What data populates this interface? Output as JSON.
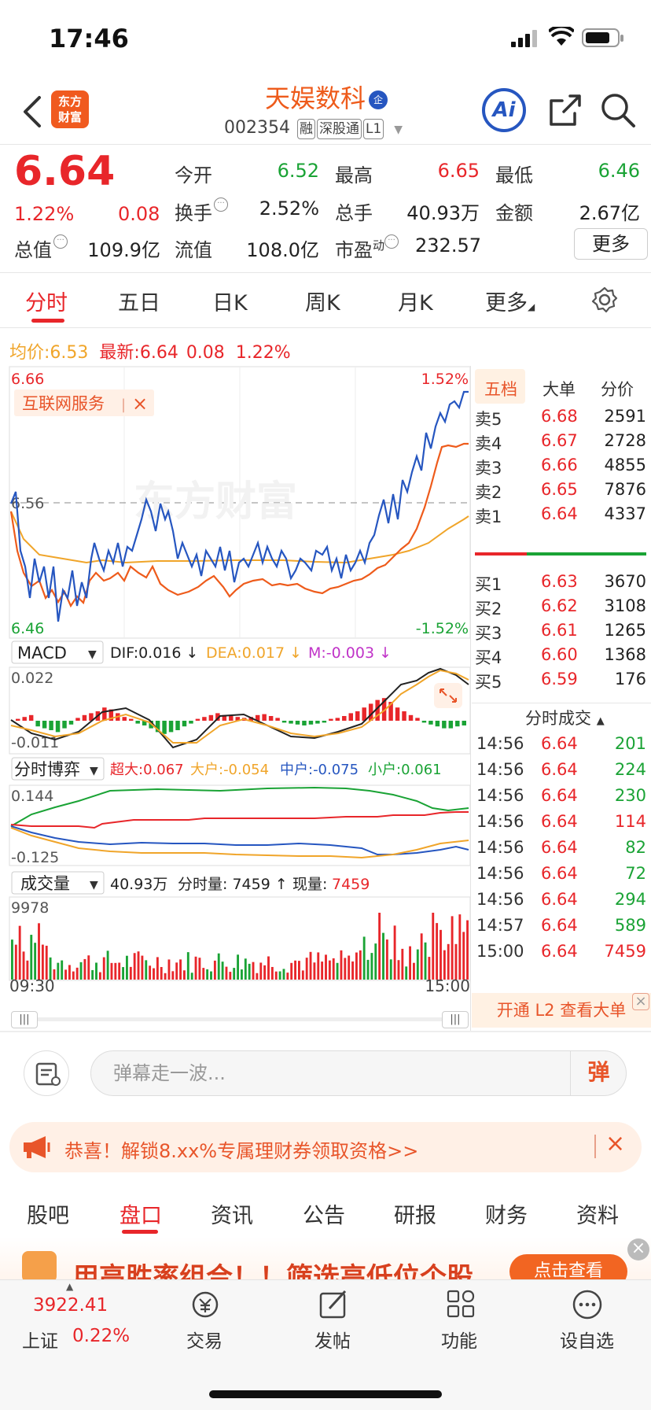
{
  "status_bar": {
    "time": "17:46"
  },
  "header": {
    "logo_text": "东方财富",
    "stock_name": "天娱数科",
    "stock_badge": "企",
    "stock_code": "002354",
    "tags": [
      "融",
      "深股通",
      "L1"
    ]
  },
  "quote": {
    "price": "6.64",
    "change_pct": "1.22%",
    "change": "0.08",
    "fields": [
      {
        "label": "今开",
        "value": "6.52",
        "color": "green"
      },
      {
        "label": "最高",
        "value": "6.65",
        "color": "red"
      },
      {
        "label": "最低",
        "value": "6.46",
        "color": "green"
      },
      {
        "label": "换手",
        "value": "2.52%",
        "color": "black"
      },
      {
        "label": "总手",
        "value": "40.93万",
        "color": "black"
      },
      {
        "label": "金额",
        "value": "2.67亿",
        "color": "black"
      },
      {
        "label": "总值",
        "value": "109.9亿",
        "color": "black"
      },
      {
        "label": "流值",
        "value": "108.0亿",
        "color": "black"
      },
      {
        "label": "市盈",
        "value": "232.57",
        "color": "black"
      }
    ],
    "pe_superscript": "动",
    "more_label": "更多"
  },
  "chart_tabs": [
    "分时",
    "五日",
    "日K",
    "周K",
    "月K",
    "更多"
  ],
  "legend": {
    "avg_label": "均价:",
    "avg_value": "6.53",
    "latest_label": "最新:",
    "latest_value": "6.64",
    "change": "0.08",
    "change_pct": "1.22%"
  },
  "intraday": {
    "price_max": "6.66",
    "price_mid": "6.56",
    "price_min": "6.46",
    "pct_max": "1.52%",
    "pct_min": "-1.52%",
    "sector_tag": "互联网服务",
    "watermark": "东方财富",
    "time_start": "09:30",
    "time_end": "15:00"
  },
  "macd": {
    "name": "MACD",
    "dif": "DIF:0.016 ↓",
    "dea": "DEA:0.017 ↓",
    "m": "M:-0.003 ↓",
    "top": "0.022",
    "bottom": "-0.011"
  },
  "bogame": {
    "name": "分时博弈",
    "chaoda": "超大:0.067",
    "dahu": "大户:-0.054",
    "zhonghu": "中户:-0.075",
    "xiaohu": "小户:0.061",
    "top": "0.144",
    "bottom": "-0.125"
  },
  "volume": {
    "name": "成交量",
    "total": "40.93万",
    "fenshi_label": "分时量: 7459 ↑",
    "current_label": "现量:",
    "current_value": "7459",
    "max": "9978"
  },
  "orderbook": {
    "tabs": [
      "五档",
      "大单",
      "分价"
    ],
    "asks": [
      {
        "label": "卖5",
        "price": "6.68",
        "vol": "2591"
      },
      {
        "label": "卖4",
        "price": "6.67",
        "vol": "2728"
      },
      {
        "label": "卖3",
        "price": "6.66",
        "vol": "4855"
      },
      {
        "label": "卖2",
        "price": "6.65",
        "vol": "7876"
      },
      {
        "label": "卖1",
        "price": "6.64",
        "vol": "4337"
      }
    ],
    "bids": [
      {
        "label": "买1",
        "price": "6.63",
        "vol": "3670"
      },
      {
        "label": "买2",
        "price": "6.62",
        "vol": "3108"
      },
      {
        "label": "买3",
        "price": "6.61",
        "vol": "1265"
      },
      {
        "label": "买4",
        "price": "6.60",
        "vol": "1368"
      },
      {
        "label": "买5",
        "price": "6.59",
        "vol": "176"
      }
    ],
    "trades_title": "分时成交",
    "trades": [
      {
        "time": "14:56",
        "price": "6.64",
        "vol": "201",
        "color": "green"
      },
      {
        "time": "14:56",
        "price": "6.64",
        "vol": "224",
        "color": "green"
      },
      {
        "time": "14:56",
        "price": "6.64",
        "vol": "230",
        "color": "green"
      },
      {
        "time": "14:56",
        "price": "6.64",
        "vol": "114",
        "color": "red"
      },
      {
        "time": "14:56",
        "price": "6.64",
        "vol": "82",
        "color": "green"
      },
      {
        "time": "14:56",
        "price": "6.64",
        "vol": "72",
        "color": "green"
      },
      {
        "time": "14:56",
        "price": "6.64",
        "vol": "294",
        "color": "green"
      },
      {
        "time": "14:57",
        "price": "6.64",
        "vol": "589",
        "color": "green"
      },
      {
        "time": "15:00",
        "price": "6.64",
        "vol": "7459",
        "color": "red"
      }
    ],
    "l2_label": "开通 L2 查看大单"
  },
  "danmu": {
    "placeholder": "弹幕走一波...",
    "send_label": "弹"
  },
  "promo": {
    "text": "恭喜！解锁8.xx%专属理财券领取资格>>"
  },
  "bottom_tabs": [
    "股吧",
    "盘口",
    "资讯",
    "公告",
    "研报",
    "财务",
    "资料"
  ],
  "banner": {
    "text": "用高胜率组合！！筛选高低位个股",
    "button": "点击查看"
  },
  "bottom_nav": {
    "index_value": "3922.41",
    "index_name": "上证",
    "index_pct": "0.22%",
    "items": [
      "交易",
      "发帖",
      "功能",
      "设自选"
    ]
  }
}
